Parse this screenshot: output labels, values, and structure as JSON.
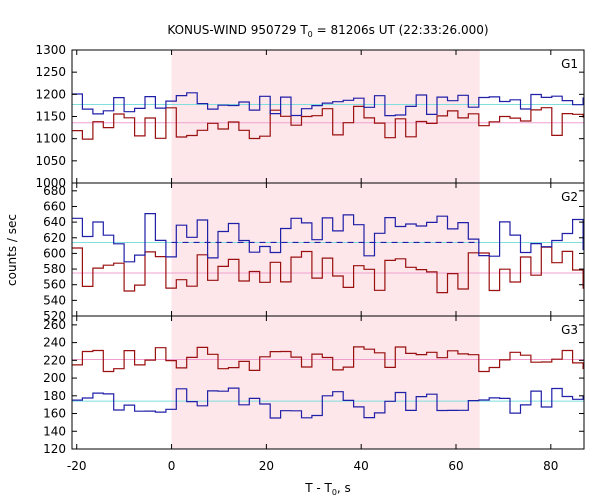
{
  "chart_data": {
    "type": "line",
    "title": "KONUS-WIND 950729 T",
    "title_sub": "0",
    "title_rest": " = 81206s UT (22:33:26.000)",
    "xlabel": "T - T",
    "xlabel_sub": "0",
    "xlabel_rest": ", s",
    "ylabel": "counts / sec",
    "xlim": [
      -21,
      87
    ],
    "xticks": [
      -20,
      0,
      20,
      40,
      60,
      80
    ],
    "x_tick_labels": [
      "-20",
      "0",
      "20",
      "40",
      "60",
      "80"
    ],
    "highlight_interval": [
      0,
      65
    ],
    "colors": {
      "blue": "#1f1fa8",
      "red": "#9a0f0f",
      "cyan_bg": "#7fdede",
      "pink_bg": "#f0a0d0",
      "shade": "#fde7ea"
    },
    "bin_width": 2.2,
    "panels": [
      {
        "name": "G1",
        "ylim": [
          1000,
          1300
        ],
        "yticks": [
          1000,
          1050,
          1100,
          1150,
          1200,
          1250,
          1300
        ],
        "y_tick_labels": [
          "1000",
          "1050",
          "1100",
          "1150",
          "1200",
          "1250",
          "1300"
        ],
        "blue": {
          "mean": 1178,
          "amp": 28,
          "seed": 11
        },
        "red": {
          "mean": 1135,
          "amp": 38,
          "seed": 27
        },
        "bg_blue": 1177,
        "bg_red": 1136,
        "dashed_blue": false
      },
      {
        "name": "G2",
        "ylim": [
          520,
          690
        ],
        "yticks": [
          520,
          540,
          560,
          580,
          600,
          620,
          640,
          660,
          680
        ],
        "y_tick_labels": [
          "520",
          "540",
          "560",
          "580",
          "600",
          "620",
          "640",
          "660",
          "680"
        ],
        "blue": {
          "mean": 620,
          "amp": 32,
          "seed": 5
        },
        "red": {
          "mean": 578,
          "amp": 30,
          "seed": 41
        },
        "bg_blue": 614,
        "bg_red": 575,
        "dashed_blue": true
      },
      {
        "name": "G3",
        "ylim": [
          120,
          270
        ],
        "yticks": [
          120,
          140,
          160,
          180,
          200,
          220,
          240,
          260
        ],
        "y_tick_labels": [
          "120",
          "140",
          "160",
          "180",
          "200",
          "220",
          "240",
          "260"
        ],
        "blue": {
          "mean": 172,
          "amp": 17,
          "seed": 19
        },
        "red": {
          "mean": 221,
          "amp": 15,
          "seed": 33
        },
        "bg_blue": 174,
        "bg_red": 221,
        "dashed_blue": false
      }
    ]
  }
}
